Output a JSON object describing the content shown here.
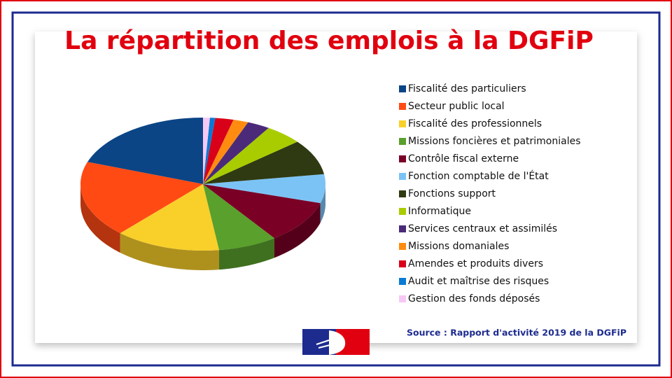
{
  "chart_data": {
    "type": "pie3d",
    "title": "La répartition des emplois à la DGFiP",
    "source": "Source : Rapport d'activité 2019 de la DGFiP",
    "categories": [
      "Fiscalité des particuliers",
      "Secteur public local",
      "Fiscalité des professionnels",
      "Missions foncières et patrimoniales",
      "Contrôle fiscal externe",
      "Fonction comptable de l'État",
      "Fonctions support",
      "Informatique",
      "Services centraux et assimilés",
      "Missions domaniales",
      "Amendes et produits divers",
      "Audit et maîtrise des risques",
      "Gestion des fonds déposés"
    ],
    "values": [
      19.6,
      18.6,
      13.9,
      7.8,
      10.5,
      7,
      8.6,
      5,
      3,
      2,
      2.4,
      0.7,
      0.9
    ],
    "colors": [
      "#0b4586",
      "#ff4a14",
      "#f9cf2a",
      "#5aa02c",
      "#7a0026",
      "#7cc3f5",
      "#2f3a12",
      "#a8cc00",
      "#4b2a7a",
      "#ff8c10",
      "#d90019",
      "#0a7ad4",
      "#f7c8f4"
    ],
    "legend": "right"
  }
}
